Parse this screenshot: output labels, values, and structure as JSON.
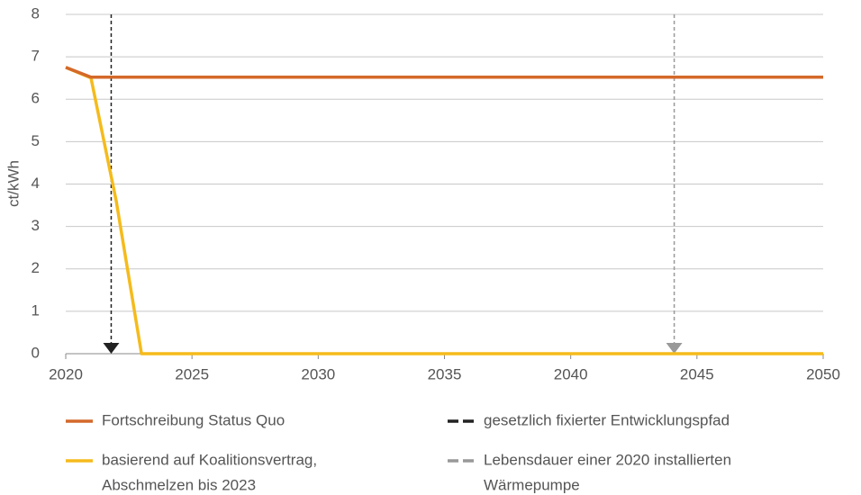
{
  "chart_data": {
    "type": "line",
    "y_label": "ct/kWh",
    "x": [
      2020,
      2021,
      2022,
      2023,
      2050
    ],
    "series": [
      {
        "name": [
          "Fortschreibung Status Quo"
        ],
        "color": "#d4692a",
        "values": [
          6.75,
          6.52,
          6.52,
          6.52,
          6.52
        ]
      },
      {
        "name": [
          "basierend auf Koalitionsvertrag,",
          "Abschmelzen bis 2023"
        ],
        "color": "#f5bb1c",
        "values": [
          6.75,
          6.5,
          3.6,
          0,
          0
        ]
      }
    ],
    "vlines": [
      {
        "name": [
          "gesetzlich fixierter Entwicklungspfad"
        ],
        "color": "#222222",
        "x": 2021.8
      },
      {
        "name": [
          "Lebensdauer einer 2020 installierten",
          "Wärmepumpe"
        ],
        "color": "#999999",
        "x": 2044.1
      }
    ],
    "xlim": [
      2020,
      2050
    ],
    "xticks": [
      2020,
      2025,
      2030,
      2035,
      2040,
      2045,
      2050
    ],
    "ylim": [
      0,
      8
    ],
    "yticks": [
      0,
      1,
      2,
      3,
      4,
      5,
      6,
      7,
      8
    ],
    "grid": true
  }
}
